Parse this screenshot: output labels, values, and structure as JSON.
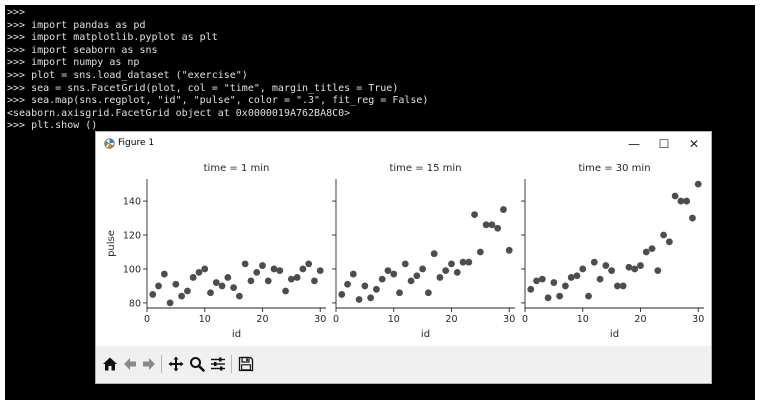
{
  "terminal": {
    "lines": [
      ">>>",
      ">>> import pandas as pd",
      ">>> import matplotlib.pyplot as plt",
      ">>> import seaborn as sns",
      ">>> import numpy as np",
      ">>> plot = sns.load_dataset (\"exercise\")",
      ">>> sea = sns.FacetGrid(plot, col = \"time\", margin_titles = True)",
      ">>> sea.map(sns.regplot, \"id\", \"pulse\", color = \".3\", fit_reg = False)",
      "<seaborn.axisgrid.FacetGrid object at 0x0000019A762BA8C0>",
      ">>> plt.show ()"
    ]
  },
  "window": {
    "title": "Figure 1",
    "icon": "matplotlib-icon",
    "minimize": "—",
    "maximize": "☐",
    "close": "✕"
  },
  "toolbar": {
    "home": "home-icon",
    "back": "back-arrow-icon",
    "forward": "forward-arrow-icon",
    "pan": "pan-icon",
    "zoom": "zoom-icon",
    "configure": "configure-subplots-icon",
    "save": "save-icon"
  },
  "chart_data": [
    {
      "type": "scatter",
      "title": "time = 1 min",
      "xlabel": "id",
      "ylabel": "pulse",
      "xlim": [
        0,
        31
      ],
      "ylim": [
        77,
        153
      ],
      "xticks": [
        0,
        10,
        20,
        30
      ],
      "yticks": [
        80,
        100,
        120,
        140
      ],
      "color": "#4d4d4d",
      "x": [
        1,
        2,
        3,
        4,
        5,
        6,
        7,
        8,
        9,
        10,
        11,
        12,
        13,
        14,
        15,
        16,
        17,
        18,
        19,
        20,
        21,
        22,
        23,
        24,
        25,
        26,
        27,
        28,
        29,
        30
      ],
      "y": [
        85,
        90,
        97,
        80,
        91,
        84,
        87,
        95,
        98,
        100,
        86,
        92,
        90,
        95,
        89,
        84,
        103,
        93,
        98,
        102,
        93,
        100,
        99,
        87,
        94,
        95,
        100,
        103,
        93,
        99
      ]
    },
    {
      "type": "scatter",
      "title": "time = 15 min",
      "xlabel": "id",
      "ylabel": "",
      "xlim": [
        0,
        31
      ],
      "ylim": [
        77,
        153
      ],
      "xticks": [
        0,
        10,
        20,
        30
      ],
      "yticks": [
        80,
        100,
        120,
        140
      ],
      "color": "#4d4d4d",
      "x": [
        1,
        2,
        3,
        4,
        5,
        6,
        7,
        8,
        9,
        10,
        11,
        12,
        13,
        14,
        15,
        16,
        17,
        18,
        19,
        20,
        21,
        22,
        23,
        24,
        25,
        26,
        27,
        28,
        29,
        30
      ],
      "y": [
        85,
        91,
        97,
        82,
        90,
        83,
        88,
        94,
        99,
        97,
        86,
        103,
        93,
        96,
        100,
        86,
        109,
        95,
        99,
        103,
        98,
        104,
        104,
        132,
        110,
        126,
        126,
        124,
        135,
        111
      ]
    },
    {
      "type": "scatter",
      "title": "time = 30 min",
      "xlabel": "id",
      "ylabel": "",
      "xlim": [
        0,
        31
      ],
      "ylim": [
        77,
        153
      ],
      "xticks": [
        0,
        10,
        20,
        30
      ],
      "yticks": [
        80,
        100,
        120,
        140
      ],
      "color": "#4d4d4d",
      "x": [
        1,
        2,
        3,
        4,
        5,
        6,
        7,
        8,
        9,
        10,
        11,
        12,
        13,
        14,
        15,
        16,
        17,
        18,
        19,
        20,
        21,
        22,
        23,
        24,
        25,
        26,
        27,
        28,
        29,
        30
      ],
      "y": [
        88,
        93,
        94,
        83,
        92,
        84,
        90,
        95,
        96,
        100,
        84,
        104,
        94,
        102,
        99,
        90,
        90,
        101,
        100,
        102,
        110,
        112,
        99,
        120,
        116,
        143,
        140,
        140,
        130,
        150
      ]
    }
  ]
}
